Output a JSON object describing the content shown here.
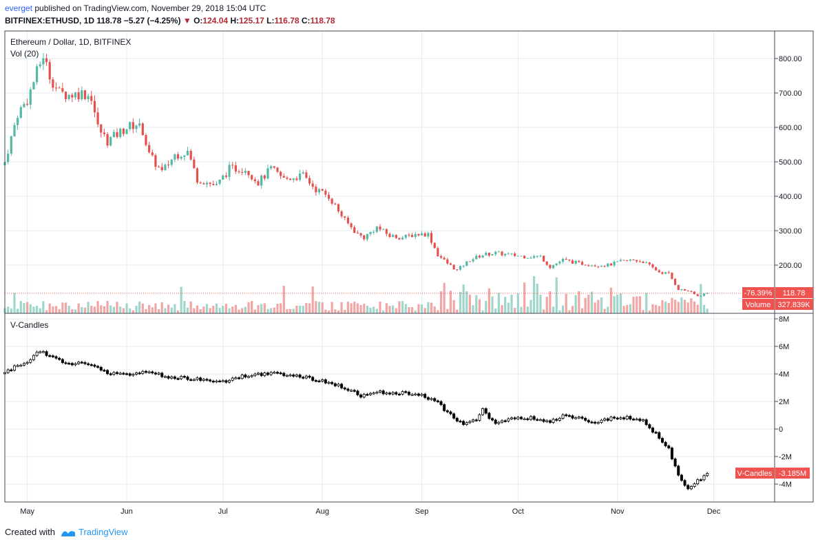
{
  "header": {
    "user": "everget",
    "published": "published on TradingView.com, November 29, 2018 15:04 UTC",
    "symbol": "BITFINEX:ETHUSD, 1D",
    "last": "118.78",
    "change_arrow": "▼",
    "change": "−5.27 (−4.25%)",
    "o_label": "O:",
    "o": "124.04",
    "h_label": "H:",
    "h": "125.17",
    "l_label": "L:",
    "l": "116.78",
    "c_label": "C:",
    "c": "118.78"
  },
  "pane1": {
    "title": "Ethereum / Dollar, 1D, BITFINEX",
    "vol_label": "Vol (20)"
  },
  "pane2": {
    "title": "V-Candles"
  },
  "footer": {
    "created_with": "Created with",
    "brand": "TradingView"
  },
  "labels": {
    "pct": "-76.39%",
    "price": "118.78",
    "volume_name": "Volume",
    "volume_val": "327.839K",
    "vc_name": "V-Candles",
    "vc_val": "-3.185M"
  },
  "chart_data": [
    {
      "type": "candlestick",
      "title": "Ethereum / Dollar, 1D, BITFINEX",
      "y_ticks": [
        "800.00",
        "700.00",
        "600.00",
        "500.00",
        "400.00",
        "300.00",
        "200.00"
      ],
      "ylim": [
        100,
        860
      ],
      "x_ticks": [
        "May",
        "Jun",
        "Jul",
        "Aug",
        "Sep",
        "Oct",
        "Nov",
        "Dec"
      ],
      "series": [
        {
          "name": "Ethereum / Dollar",
          "points": [
            [
              "2018-04-24",
              500
            ],
            [
              "2018-04-26",
              570
            ],
            [
              "2018-04-28",
              640
            ],
            [
              "2018-05-01",
              680
            ],
            [
              "2018-05-04",
              760
            ],
            [
              "2018-05-06",
              810
            ],
            [
              "2018-05-08",
              750
            ],
            [
              "2018-05-11",
              700
            ],
            [
              "2018-05-14",
              695
            ],
            [
              "2018-05-18",
              700
            ],
            [
              "2018-05-21",
              690
            ],
            [
              "2018-05-23",
              600
            ],
            [
              "2018-05-26",
              560
            ],
            [
              "2018-05-29",
              580
            ],
            [
              "2018-06-01",
              600
            ],
            [
              "2018-06-04",
              610
            ],
            [
              "2018-06-06",
              590
            ],
            [
              "2018-06-08",
              520
            ],
            [
              "2018-06-12",
              470
            ],
            [
              "2018-06-16",
              520
            ],
            [
              "2018-06-20",
              530
            ],
            [
              "2018-06-23",
              450
            ],
            [
              "2018-06-29",
              430
            ],
            [
              "2018-07-03",
              480
            ],
            [
              "2018-07-08",
              480
            ],
            [
              "2018-07-12",
              440
            ],
            [
              "2018-07-16",
              480
            ],
            [
              "2018-07-20",
              450
            ],
            [
              "2018-07-26",
              460
            ],
            [
              "2018-07-30",
              420
            ],
            [
              "2018-08-03",
              400
            ],
            [
              "2018-08-08",
              330
            ],
            [
              "2018-08-12",
              290
            ],
            [
              "2018-08-14",
              280
            ],
            [
              "2018-08-18",
              310
            ],
            [
              "2018-08-22",
              285
            ],
            [
              "2018-08-26",
              280
            ],
            [
              "2018-08-30",
              290
            ],
            [
              "2018-09-03",
              290
            ],
            [
              "2018-09-06",
              230
            ],
            [
              "2018-09-09",
              205
            ],
            [
              "2018-09-12",
              185
            ],
            [
              "2018-09-16",
              215
            ],
            [
              "2018-09-20",
              230
            ],
            [
              "2018-09-24",
              235
            ],
            [
              "2018-09-28",
              230
            ],
            [
              "2018-10-03",
              225
            ],
            [
              "2018-10-08",
              225
            ],
            [
              "2018-10-11",
              195
            ],
            [
              "2018-10-15",
              215
            ],
            [
              "2018-10-20",
              205
            ],
            [
              "2018-10-25",
              200
            ],
            [
              "2018-10-29",
              200
            ],
            [
              "2018-11-02",
              210
            ],
            [
              "2018-11-06",
              215
            ],
            [
              "2018-11-09",
              210
            ],
            [
              "2018-11-14",
              180
            ],
            [
              "2018-11-17",
              175
            ],
            [
              "2018-11-20",
              130
            ],
            [
              "2018-11-23",
              125
            ],
            [
              "2018-11-26",
              110
            ],
            [
              "2018-11-29",
              118.78
            ]
          ]
        }
      ]
    },
    {
      "type": "bar",
      "title": "Vol (20)",
      "x_ticks": [
        "May",
        "Jun",
        "Jul",
        "Aug",
        "Sep",
        "Oct",
        "Nov",
        "Dec"
      ],
      "last_value": "327.839K"
    },
    {
      "type": "candlestick",
      "title": "V-Candles",
      "y_ticks": [
        "8M",
        "6M",
        "4M",
        "2M",
        "0",
        "-2M",
        "-4M"
      ],
      "ylim": [
        -5.2,
        8
      ],
      "x_ticks": [
        "May",
        "Jun",
        "Jul",
        "Aug",
        "Sep",
        "Oct",
        "Nov",
        "Dec"
      ],
      "series": [
        {
          "name": "V-Candles",
          "points": [
            [
              "2018-04-24",
              4.1
            ],
            [
              "2018-04-28",
              4.6
            ],
            [
              "2018-05-01",
              4.9
            ],
            [
              "2018-05-05",
              5.7
            ],
            [
              "2018-05-08",
              5.2
            ],
            [
              "2018-05-14",
              4.8
            ],
            [
              "2018-05-20",
              4.7
            ],
            [
              "2018-05-26",
              4.1
            ],
            [
              "2018-06-01",
              4.0
            ],
            [
              "2018-06-08",
              4.1
            ],
            [
              "2018-06-14",
              3.8
            ],
            [
              "2018-06-20",
              3.7
            ],
            [
              "2018-06-26",
              3.5
            ],
            [
              "2018-07-02",
              3.5
            ],
            [
              "2018-07-10",
              4.0
            ],
            [
              "2018-07-18",
              4.0
            ],
            [
              "2018-07-24",
              3.9
            ],
            [
              "2018-08-01",
              3.5
            ],
            [
              "2018-08-08",
              3.0
            ],
            [
              "2018-08-13",
              2.4
            ],
            [
              "2018-08-18",
              2.7
            ],
            [
              "2018-08-26",
              2.6
            ],
            [
              "2018-09-01",
              2.5
            ],
            [
              "2018-09-06",
              1.9
            ],
            [
              "2018-09-10",
              1.0
            ],
            [
              "2018-09-14",
              0.3
            ],
            [
              "2018-09-18",
              0.7
            ],
            [
              "2018-09-20",
              1.4
            ],
            [
              "2018-09-24",
              0.3
            ],
            [
              "2018-09-28",
              0.8
            ],
            [
              "2018-10-05",
              0.8
            ],
            [
              "2018-10-10",
              0.6
            ],
            [
              "2018-10-13",
              0.6
            ],
            [
              "2018-10-15",
              1.0
            ],
            [
              "2018-10-25",
              0.5
            ],
            [
              "2018-11-02",
              0.9
            ],
            [
              "2018-11-09",
              0.6
            ],
            [
              "2018-11-14",
              -0.6
            ],
            [
              "2018-11-17",
              -1.5
            ],
            [
              "2018-11-20",
              -3.4
            ],
            [
              "2018-11-23",
              -4.3
            ],
            [
              "2018-11-27",
              -3.6
            ],
            [
              "2018-11-29",
              -3.185
            ]
          ]
        }
      ]
    }
  ]
}
